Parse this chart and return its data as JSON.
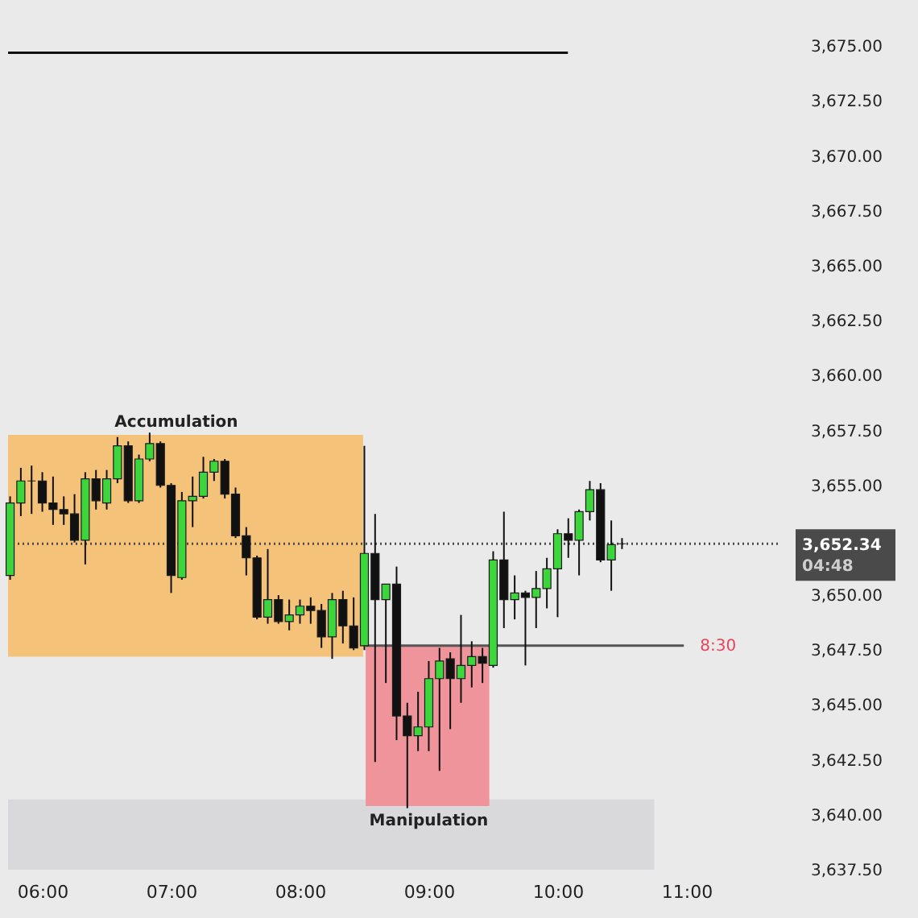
{
  "chart_data": {
    "type": "candlestick",
    "x": [
      5.75,
      5.8333,
      5.9167,
      6,
      6.0833,
      6.1667,
      6.25,
      6.3333,
      6.4167,
      6.5,
      6.5833,
      6.6667,
      6.75,
      6.8333,
      6.9167,
      7,
      7.0833,
      7.1667,
      7.25,
      7.3333,
      7.4167,
      7.5,
      7.5833,
      7.6667,
      7.75,
      7.8333,
      7.9167,
      8,
      8.0833,
      8.1667,
      8.25,
      8.3333,
      8.4167,
      8.5,
      8.5833,
      8.6667,
      8.75,
      8.8333,
      8.9167,
      9,
      9.0833,
      9.1667,
      9.25,
      9.3333,
      9.4167,
      9.5,
      9.5833,
      9.6667,
      9.75,
      9.8333,
      9.9167,
      10,
      10.0833,
      10.1667,
      10.25,
      10.3333,
      10.4167,
      10.5
    ],
    "ohlc": [
      [
        3650.9,
        3654.5,
        3650.7,
        3654.2
      ],
      [
        3654.2,
        3655.8,
        3653.6,
        3655.2
      ],
      [
        3655.2,
        3655.9,
        3653.7,
        3655.2
      ],
      [
        3655.2,
        3655.6,
        3653.8,
        3654.2
      ],
      [
        3654.2,
        3655.4,
        3653.2,
        3653.9
      ],
      [
        3653.9,
        3654.5,
        3653.2,
        3653.7
      ],
      [
        3653.7,
        3654.6,
        3652.4,
        3652.5
      ],
      [
        3652.5,
        3655.6,
        3651.4,
        3655.3
      ],
      [
        3655.3,
        3655.7,
        3653.9,
        3654.3
      ],
      [
        3654.2,
        3655.7,
        3653.9,
        3655.3
      ],
      [
        3655.3,
        3657.2,
        3655.1,
        3656.8
      ],
      [
        3656.8,
        3657.0,
        3654.2,
        3654.3
      ],
      [
        3654.3,
        3656.4,
        3654.2,
        3656.2
      ],
      [
        3656.2,
        3657.4,
        3656.1,
        3656.9
      ],
      [
        3656.9,
        3657.0,
        3654.9,
        3655.0
      ],
      [
        3655.0,
        3655.1,
        3650.1,
        3650.9
      ],
      [
        3650.8,
        3654.7,
        3650.7,
        3654.3
      ],
      [
        3654.3,
        3655.4,
        3653.1,
        3654.5
      ],
      [
        3654.5,
        3656.3,
        3654.4,
        3655.6
      ],
      [
        3655.6,
        3656.2,
        3655.2,
        3656.1
      ],
      [
        3656.1,
        3656.2,
        3654.4,
        3654.6
      ],
      [
        3654.6,
        3654.9,
        3652.6,
        3652.7
      ],
      [
        3652.7,
        3653.1,
        3650.9,
        3651.7
      ],
      [
        3651.7,
        3651.8,
        3648.9,
        3649.0
      ],
      [
        3649.0,
        3652.1,
        3648.7,
        3649.8
      ],
      [
        3649.8,
        3650.0,
        3648.7,
        3648.8
      ],
      [
        3648.8,
        3649.8,
        3648.4,
        3649.1
      ],
      [
        3649.1,
        3649.8,
        3648.7,
        3649.5
      ],
      [
        3649.5,
        3649.9,
        3648.7,
        3649.3
      ],
      [
        3649.3,
        3649.6,
        3647.6,
        3648.1
      ],
      [
        3648.1,
        3650.1,
        3647.1,
        3649.8
      ],
      [
        3649.8,
        3650.2,
        3647.8,
        3648.6
      ],
      [
        3648.6,
        3649.9,
        3647.5,
        3647.6
      ],
      [
        3647.7,
        3656.8,
        3647.5,
        3651.9
      ],
      [
        3651.9,
        3653.7,
        3642.4,
        3649.8
      ],
      [
        3649.8,
        3650.5,
        3646.0,
        3650.5
      ],
      [
        3650.5,
        3651.3,
        3643.4,
        3644.5
      ],
      [
        3644.5,
        3645.1,
        3640.3,
        3643.6
      ],
      [
        3643.6,
        3645.6,
        3642.9,
        3644.0
      ],
      [
        3644.0,
        3647.0,
        3642.9,
        3646.2
      ],
      [
        3646.2,
        3647.6,
        3642.0,
        3647.0
      ],
      [
        3647.1,
        3647.4,
        3643.9,
        3646.2
      ],
      [
        3646.2,
        3649.1,
        3645.1,
        3646.8
      ],
      [
        3646.8,
        3647.9,
        3645.8,
        3647.2
      ],
      [
        3647.2,
        3647.6,
        3646.0,
        3646.9
      ],
      [
        3646.8,
        3652.0,
        3646.7,
        3651.6
      ],
      [
        3651.6,
        3653.8,
        3648.5,
        3649.8
      ],
      [
        3649.8,
        3650.9,
        3648.9,
        3650.1
      ],
      [
        3650.1,
        3650.2,
        3646.8,
        3649.9
      ],
      [
        3649.9,
        3651.1,
        3648.5,
        3650.3
      ],
      [
        3650.3,
        3651.7,
        3649.4,
        3651.2
      ],
      [
        3651.2,
        3653.0,
        3649.0,
        3652.8
      ],
      [
        3652.8,
        3653.5,
        3651.7,
        3652.5
      ],
      [
        3652.5,
        3653.9,
        3650.9,
        3653.8
      ],
      [
        3653.8,
        3655.2,
        3653.4,
        3654.8
      ],
      [
        3654.8,
        3655.1,
        3651.5,
        3651.6
      ],
      [
        3651.6,
        3653.4,
        3650.2,
        3652.3
      ],
      [
        3652.34,
        3652.6,
        3652.1,
        3652.34
      ]
    ],
    "colors": [
      "#3cd63c",
      "#3cd63c",
      "#111111",
      "#111111",
      "#111111",
      "#111111",
      "#111111",
      "#3cd63c",
      "#111111",
      "#3cd63c",
      "#3cd63c",
      "#111111",
      "#3cd63c",
      "#3cd63c",
      "#111111",
      "#111111",
      "#3cd63c",
      "#3cd63c",
      "#3cd63c",
      "#3cd63c",
      "#111111",
      "#111111",
      "#111111",
      "#111111",
      "#3cd63c",
      "#111111",
      "#3cd63c",
      "#3cd63c",
      "#111111",
      "#111111",
      "#3cd63c",
      "#111111",
      "#111111",
      "#3cd63c",
      "#111111",
      "#3cd63c",
      "#111111",
      "#111111",
      "#3cd63c",
      "#3cd63c",
      "#3cd63c",
      "#111111",
      "#3cd63c",
      "#3cd63c",
      "#111111",
      "#3cd63c",
      "#111111",
      "#3cd63c",
      "#111111",
      "#3cd63c",
      "#3cd63c",
      "#3cd63c",
      "#111111",
      "#3cd63c",
      "#3cd63c",
      "#111111",
      "#3cd63c",
      "#111111"
    ],
    "series": [
      {
        "type": "area",
        "x": [
          5.734,
          10.75
        ],
        "values": [
          null,
          null
        ],
        "lower": [
          3637.5,
          3637.5
        ],
        "upper": [
          3640.7,
          3640.7
        ],
        "color": "#d9d9dc"
      },
      {
        "type": "area",
        "x": [
          5.734,
          8.49
        ],
        "values": [
          null,
          null
        ],
        "lower": [
          3647.2,
          3647.2
        ],
        "upper": [
          3657.3,
          3657.3
        ],
        "color": "#f5c27a"
      },
      {
        "type": "area",
        "x": [
          8.51,
          9.47
        ],
        "values": [
          null,
          null
        ],
        "lower": [
          3640.4,
          3640.4
        ],
        "upper": [
          3647.7,
          3647.7
        ],
        "color": "#ee949a"
      },
      {
        "type": "line",
        "x": [
          5.734,
          10.08
        ],
        "values": [
          3674.7,
          3674.7
        ],
        "color": "#111111"
      },
      {
        "type": "line",
        "name": "8:30",
        "x": [
          8.51,
          10.98
        ],
        "values": [
          3647.7,
          3647.7
        ],
        "color": "#555555"
      }
    ],
    "xlim": [
      5.734,
      11.71
    ],
    "xticks": [
      {
        "value": 6,
        "label": "06:00"
      },
      {
        "value": 7,
        "label": "07:00"
      },
      {
        "value": 8,
        "label": "08:00"
      },
      {
        "value": 9,
        "label": "09:00"
      },
      {
        "value": 10,
        "label": "10:00"
      },
      {
        "value": 11,
        "label": "11:00"
      }
    ],
    "ylim": [
      3637.5,
      3677.1
    ],
    "yticks": [
      {
        "value": 3637.5,
        "label": "3,637.50"
      },
      {
        "value": 3640,
        "label": "3,640.00"
      },
      {
        "value": 3642.5,
        "label": "3,642.50"
      },
      {
        "value": 3645,
        "label": "3,645.00"
      },
      {
        "value": 3647.5,
        "label": "3,647.50"
      },
      {
        "value": 3650,
        "label": "3,650.00"
      },
      {
        "value": 3655,
        "label": "3,655.00"
      },
      {
        "value": 3657.5,
        "label": "3,657.50"
      },
      {
        "value": 3660,
        "label": "3,660.00"
      },
      {
        "value": 3662.5,
        "label": "3,662.50"
      },
      {
        "value": 3665,
        "label": "3,665.00"
      },
      {
        "value": 3667.5,
        "label": "3,667.50"
      },
      {
        "value": 3670,
        "label": "3,670.00"
      },
      {
        "value": 3672.5,
        "label": "3,672.50"
      },
      {
        "value": 3675,
        "label": "3,675.00"
      }
    ],
    "ref_lines": [
      {
        "axis": "y",
        "value": 3652.34,
        "label": "3,652.34\n04:48",
        "color": "#4a4a4a",
        "line_style": "dotted"
      }
    ],
    "annotations": [
      {
        "text": "Accumulation",
        "x": 7.04,
        "y": 3657.3
      },
      {
        "text": "Manipulation",
        "x": 9.0,
        "y": 3640.4
      }
    ]
  }
}
